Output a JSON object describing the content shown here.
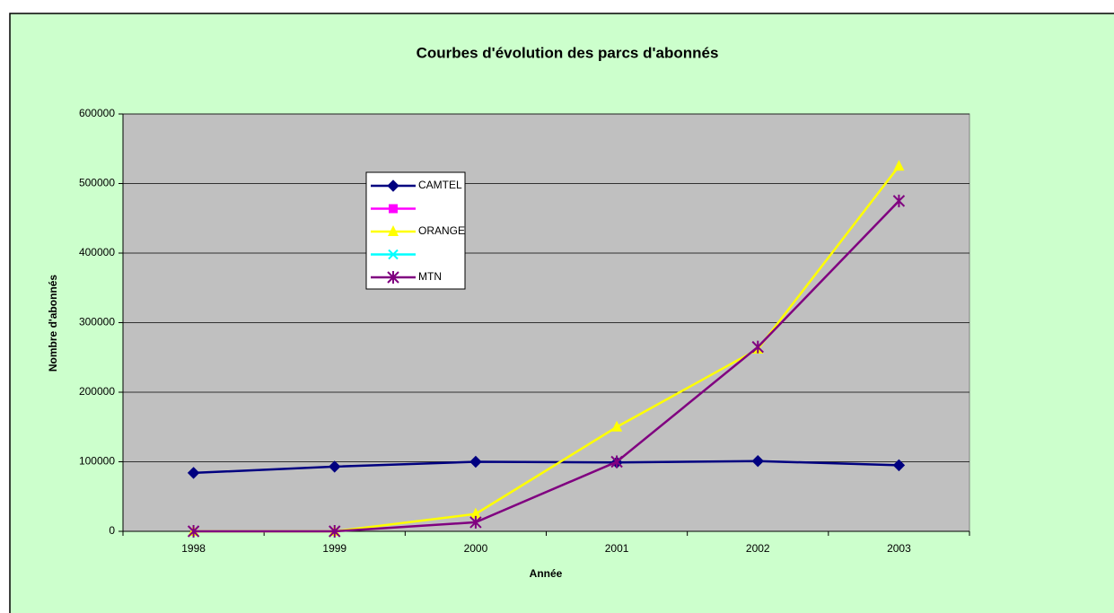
{
  "chart_data": {
    "type": "line",
    "title": "Courbes d'évolution des parcs d'abonnés",
    "x_label": "Année",
    "y_label": "Nombre d'abonnés",
    "categories": [
      "1998",
      "1999",
      "2000",
      "2001",
      "2002",
      "2003"
    ],
    "series": [
      {
        "name": "CAMTEL",
        "color": "#000080",
        "marker": "diamond",
        "values": [
          84000,
          93000,
          100000,
          99000,
          101000,
          95000
        ]
      },
      {
        "color": "#ff00ff",
        "marker": "square",
        "values": [
          null,
          null,
          null,
          null,
          null,
          null
        ]
      },
      {
        "name": "ORANGE",
        "color": "#ffff00",
        "marker": "triangle",
        "values": [
          0,
          0,
          25000,
          150000,
          262000,
          525000
        ]
      },
      {
        "color": "#00ffff",
        "marker": "x",
        "values": [
          null,
          null,
          null,
          null,
          null,
          null
        ]
      },
      {
        "name": "MTN",
        "color": "#800080",
        "marker": "star",
        "values": [
          0,
          0,
          13000,
          100000,
          265000,
          475000
        ]
      }
    ],
    "ylim": [
      0,
      600000
    ],
    "yticks": [
      0,
      100000,
      200000,
      300000,
      400000,
      500000,
      600000
    ],
    "grid": true,
    "legend": "inside-left"
  }
}
